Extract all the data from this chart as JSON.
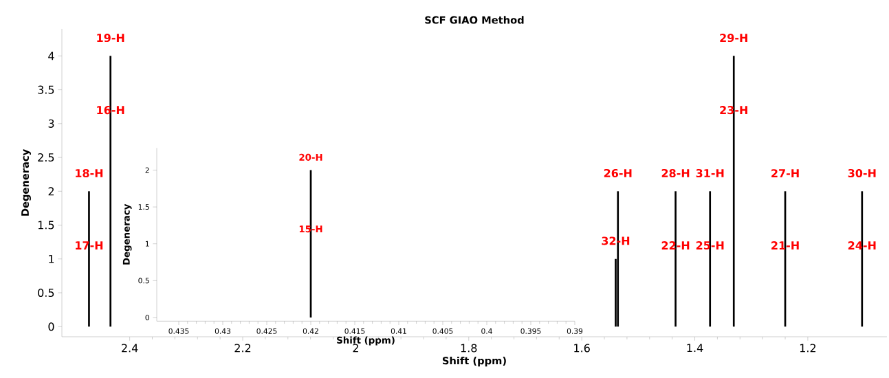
{
  "chart_data": [
    {
      "type": "bar",
      "title": "SCF GIAO Method",
      "xlabel": "Shift (ppm)",
      "ylabel": "Degeneracy",
      "x": [
        2.472,
        2.434,
        1.54,
        1.536,
        1.434,
        1.373,
        1.331,
        1.24,
        1.104
      ],
      "values": [
        2,
        4,
        1,
        2,
        2,
        2,
        4,
        2,
        2
      ],
      "color": "#000000",
      "xlim": [
        2.52,
        1.06
      ],
      "xticks": [
        2.4,
        2.2,
        2,
        1.8,
        1.6,
        1.4,
        1.2
      ],
      "ylim": [
        -0.15,
        4.4
      ],
      "yticks": [
        0,
        0.5,
        1,
        1.5,
        2,
        2.5,
        3,
        3.5,
        4
      ],
      "annotations": [
        {
          "text": "19-H",
          "x": 2.434,
          "y": 4
        },
        {
          "text": "16-H",
          "x": 2.434,
          "y": 3.2
        },
        {
          "text": "18-H",
          "x": 2.472,
          "y": 2
        },
        {
          "text": "17-H",
          "x": 2.472,
          "y": 1.2
        },
        {
          "text": "26-H",
          "x": 1.536,
          "y": 2
        },
        {
          "text": "32-H",
          "x": 1.54,
          "y": 1
        },
        {
          "text": "28-H",
          "x": 1.434,
          "y": 2
        },
        {
          "text": "22-H",
          "x": 1.434,
          "y": 1.2
        },
        {
          "text": "31-H",
          "x": 1.373,
          "y": 2
        },
        {
          "text": "25-H",
          "x": 1.373,
          "y": 1.2
        },
        {
          "text": "29-H",
          "x": 1.331,
          "y": 4
        },
        {
          "text": "23-H",
          "x": 1.331,
          "y": 3.2
        },
        {
          "text": "27-H",
          "x": 1.24,
          "y": 2
        },
        {
          "text": "21-H",
          "x": 1.24,
          "y": 1.2
        },
        {
          "text": "30-H",
          "x": 1.104,
          "y": 2
        },
        {
          "text": "24-H",
          "x": 1.104,
          "y": 1.2
        }
      ]
    },
    {
      "type": "bar",
      "xlabel": "Shift (ppm)",
      "ylabel": "Degeneracy",
      "x": [
        0.42
      ],
      "values": [
        2
      ],
      "color": "#000000",
      "xlim": [
        0.4375,
        0.39
      ],
      "xticks": [
        0.435,
        0.43,
        0.425,
        0.42,
        0.415,
        0.41,
        0.405,
        0.4,
        0.395,
        0.39
      ],
      "ylim": [
        -0.05,
        2.3
      ],
      "yticks": [
        0,
        0.5,
        1,
        1.5,
        2
      ],
      "annotations": [
        {
          "text": "20-H",
          "x": 0.42,
          "y": 2
        },
        {
          "text": "15-H",
          "x": 0.42,
          "y": 1.2
        }
      ]
    }
  ]
}
